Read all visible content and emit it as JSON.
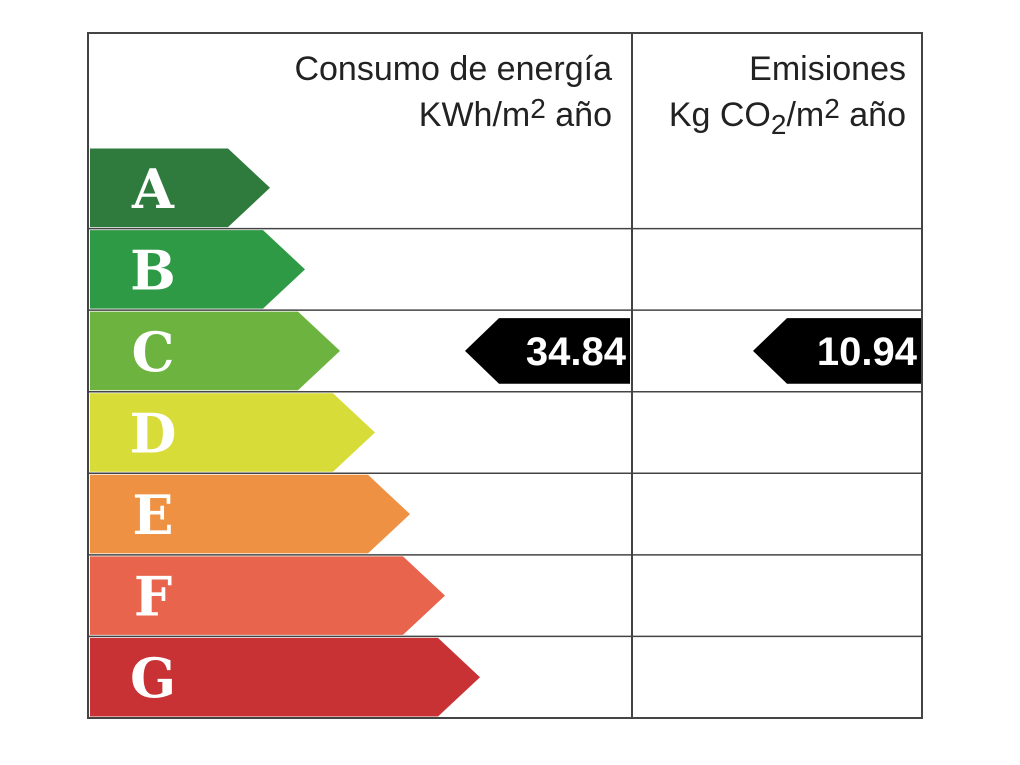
{
  "header": {
    "energy": {
      "title": "Consumo de energía",
      "unit": [
        "KWh/m",
        "2",
        " año"
      ]
    },
    "emissions": {
      "title": "Emisiones",
      "unit": [
        "Kg CO",
        "2",
        "/m",
        "2",
        " año"
      ]
    }
  },
  "rows": [
    {
      "letter": "A",
      "color": "#2e7b3d",
      "energy": null,
      "emissions": null
    },
    {
      "letter": "B",
      "color": "#2f9a45",
      "energy": null,
      "emissions": null
    },
    {
      "letter": "C",
      "color": "#6cb33f",
      "energy": 34.84,
      "emissions": 10.94
    },
    {
      "letter": "D",
      "color": "#d8dc38",
      "energy": null,
      "emissions": null
    },
    {
      "letter": "E",
      "color": "#ee9142",
      "energy": null,
      "emissions": null
    },
    {
      "letter": "F",
      "color": "#e8644c",
      "energy": null,
      "emissions": null
    },
    {
      "letter": "G",
      "color": "#c93235",
      "energy": null,
      "emissions": null
    }
  ]
}
